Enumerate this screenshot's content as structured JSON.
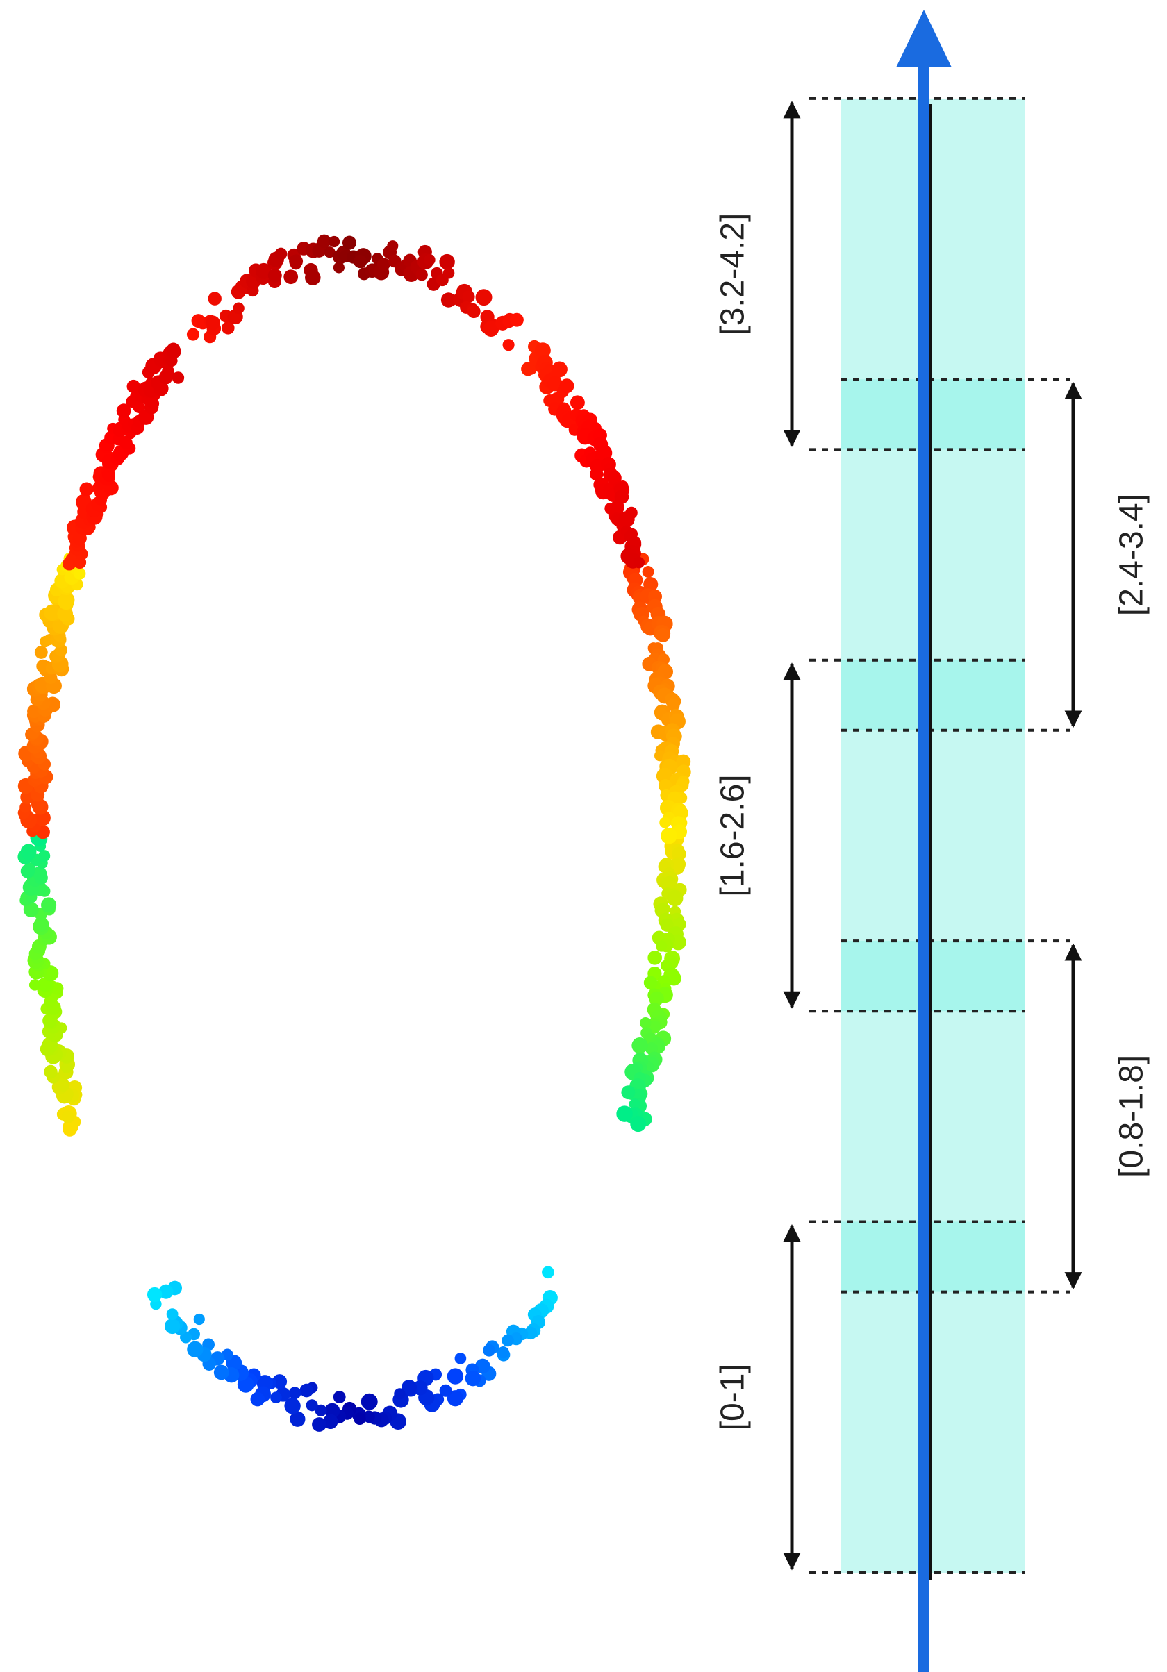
{
  "diagram": {
    "axis_color": "#1a6be0",
    "band_color": "#c6f8f2",
    "overlap_color": "#a7f5ec",
    "dashed_color": "#222222",
    "arrow_color": "#111111",
    "intervals": [
      {
        "label": "[0-1]",
        "start": 0.0,
        "end": 1.0,
        "side": "left"
      },
      {
        "label": "[0.8-1.8]",
        "start": 0.8,
        "end": 1.8,
        "side": "right"
      },
      {
        "label": "[1.6-2.6]",
        "start": 1.6,
        "end": 2.6,
        "side": "left"
      },
      {
        "label": "[2.4-3.4]",
        "start": 2.4,
        "end": 3.4,
        "side": "right"
      },
      {
        "label": "[3.2-4.2]",
        "start": 3.2,
        "end": 4.2,
        "side": "left"
      }
    ],
    "overlaps": [
      {
        "start": 0.8,
        "end": 1.0
      },
      {
        "start": 1.6,
        "end": 1.8
      },
      {
        "start": 2.4,
        "end": 2.6
      },
      {
        "start": 3.2,
        "end": 3.4
      }
    ],
    "clusters": [
      {
        "name": "bottom-arc",
        "colors": [
          "#00e5ff",
          "#0044ff",
          "#0000aa",
          "#0044ff",
          "#00e5ff"
        ]
      },
      {
        "name": "lower-left",
        "colors": [
          "#ffdd00",
          "#88ff00",
          "#00ee88"
        ]
      },
      {
        "name": "lower-right",
        "colors": [
          "#ffdd00",
          "#88ff00",
          "#00ee88"
        ]
      },
      {
        "name": "middle-left",
        "colors": [
          "#ff3300",
          "#ff8800",
          "#ffee00"
        ]
      },
      {
        "name": "middle-right",
        "colors": [
          "#ff3300",
          "#ff8800",
          "#ffee00"
        ]
      },
      {
        "name": "upper-left",
        "colors": [
          "#ff2200",
          "#ff0000",
          "#dd0000"
        ]
      },
      {
        "name": "upper-right",
        "colors": [
          "#ff2200",
          "#ff0000",
          "#dd0000"
        ]
      },
      {
        "name": "top-arc",
        "colors": [
          "#ff1100",
          "#cc0000",
          "#880000",
          "#cc0000",
          "#ff1100"
        ]
      }
    ]
  }
}
